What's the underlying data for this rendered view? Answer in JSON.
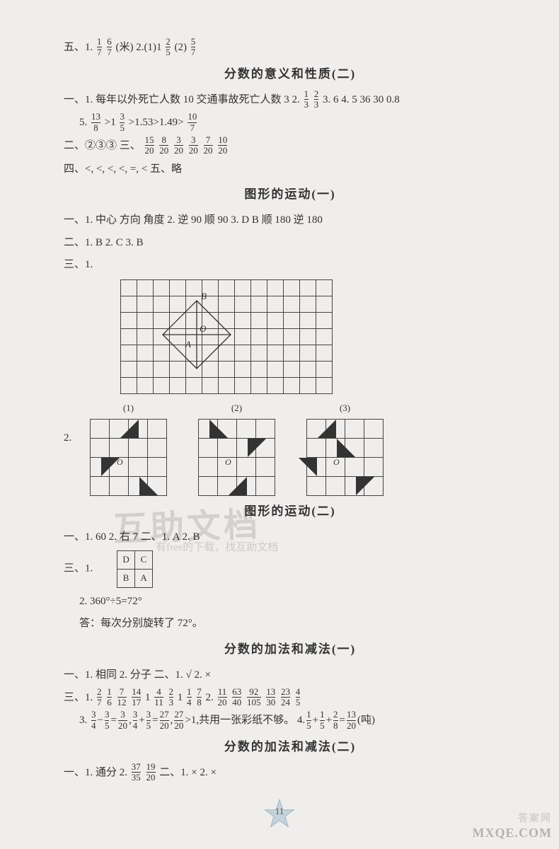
{
  "section1": {
    "line1_parts": [
      "五、1.",
      "1",
      "7",
      " ",
      "6",
      "7",
      "(米)  2.(1)1",
      "2",
      "5",
      "  (2)",
      "5",
      "7"
    ]
  },
  "header2": "分数的意义和性质(二)",
  "section2": {
    "l1a": "一、1. 每年以外死亡人数  10  交通事故死亡人数  3  2.",
    "l1b_fracs": [
      [
        "1",
        "3"
      ],
      [
        "2",
        "3"
      ]
    ],
    "l1c": "  3. 6  4. 5  36  30  0.8",
    "l2a": "5.",
    "l2_seq": [
      [
        "13",
        "8"
      ],
      ">1",
      [
        "3",
        "5"
      ],
      ">1.53>1.49>",
      [
        "10",
        "7"
      ]
    ],
    "l3a": "二、②③③  三、",
    "l3_fracs": [
      [
        "15",
        "20"
      ],
      [
        "8",
        "20"
      ],
      [
        "3",
        "20"
      ],
      [
        "3",
        "20"
      ],
      [
        "7",
        "20"
      ],
      [
        "10",
        "20"
      ]
    ],
    "l4": "四、<, <, <, <, =, <  五、略"
  },
  "header3": "图形的运动(一)",
  "section3": {
    "l1": "一、1. 中心  方向  角度  2. 逆  90  顺  90  3. D  B  顺  180  逆  180",
    "l2": "二、1. B  2. C  3. B",
    "l3": "三、1."
  },
  "grid1": {
    "rows": 7,
    "cols": 13,
    "labels": {
      "A": "A",
      "B": "B",
      "O": "O"
    }
  },
  "sq_row_label": "2.",
  "sq_items": [
    "(1)",
    "(2)",
    "(3)"
  ],
  "header4": "图形的运动(二)",
  "section4": {
    "l1": "一、1. 60  2. 右  7  二、1. A  2. B",
    "l2": "三、1.",
    "table": [
      [
        "D",
        "C"
      ],
      [
        "B",
        "A"
      ]
    ],
    "l3": "2. 360°÷5=72°",
    "l4": "答：每次分别旋转了 72°。"
  },
  "header5": "分数的加法和减法(一)",
  "section5": {
    "l1": "一、1. 相同  2. 分子  二、1. √  2. ×",
    "l2a": "三、1.",
    "l2_fracs": [
      [
        "2",
        "7"
      ],
      [
        "1",
        "6"
      ],
      [
        "7",
        "12"
      ],
      [
        "14",
        "17"
      ],
      "1",
      [
        "4",
        "11"
      ],
      [
        "2",
        "3"
      ],
      "1",
      [
        "1",
        "4"
      ],
      [
        "7",
        "8"
      ],
      "  2.",
      [
        "11",
        "20"
      ],
      [
        "63",
        "40"
      ],
      [
        "92",
        "105"
      ],
      [
        "13",
        "30"
      ],
      [
        "23",
        "24"
      ],
      [
        "4",
        "5"
      ]
    ],
    "l3a": "3.",
    "l3_seq": [
      [
        "3",
        "4"
      ],
      "−",
      [
        "3",
        "5"
      ],
      "=",
      [
        "3",
        "20"
      ],
      ",",
      [
        "3",
        "4"
      ],
      "+",
      [
        "3",
        "5"
      ],
      "=",
      [
        "27",
        "20"
      ],
      ",",
      [
        "27",
        "20"
      ],
      ">1,共用一张彩纸不够。  4.",
      [
        "1",
        "5"
      ],
      "+",
      [
        "1",
        "5"
      ],
      "+",
      [
        "2",
        "8"
      ],
      "=",
      [
        "13",
        "20"
      ],
      "(吨)"
    ]
  },
  "header6": "分数的加法和减法(二)",
  "section6": {
    "l1a": "一、1. 通分  2.",
    "l1_fracs": [
      [
        "37",
        "35"
      ],
      [
        "19",
        "20"
      ]
    ],
    "l1b": "  二、1. ×  2. ×"
  },
  "page_number": "11",
  "watermark_main": "互助文档",
  "watermark_sub": "有free的下载，找互助文档",
  "corner1": "答案网",
  "corner2": "MXQE.COM",
  "colors": {
    "text": "#333333",
    "border": "#444444",
    "bg": "#f0eeec",
    "star_fill": "#b8c8d2",
    "star_stroke": "#8aa0b0"
  }
}
